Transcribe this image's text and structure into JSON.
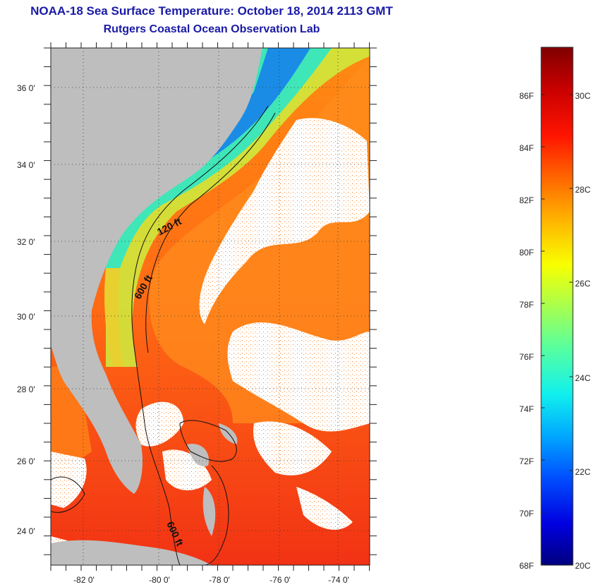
{
  "header": {
    "title": "NOAA-18 Sea Surface Temperature:  October 18, 2014 2113 GMT",
    "subtitle": "Rutgers Coastal Ocean Observation Lab"
  },
  "map": {
    "lat_labels": [
      "36 0'",
      "34 0'",
      "32 0'",
      "30 0'",
      "28 0'",
      "26 0'",
      "24 0'"
    ],
    "lon_labels": [
      "-82 0'",
      "-80 0'",
      "-78 0'",
      "-76 0'",
      "-74 0'"
    ],
    "contour_labels": [
      "120 ft",
      "600 ft",
      "600 ft"
    ],
    "colors": {
      "land": "#bebebe",
      "cloud": "#ffffff",
      "warm_water": "#f24a16",
      "gulf_stream": "#ff7a12",
      "shelf_water": "#4fe0b0",
      "cold_coastal": "#1a8ce6"
    }
  },
  "colorbar": {
    "fahrenheit_labels": [
      "86F",
      "84F",
      "82F",
      "80F",
      "78F",
      "76F",
      "74F",
      "72F",
      "70F",
      "68F"
    ],
    "celsius_labels": [
      "30C",
      "28C",
      "26C",
      "24C",
      "22C",
      "20C"
    ],
    "gradient": [
      "#00007f",
      "#0000e0",
      "#0050ff",
      "#00a8ff",
      "#10f0ee",
      "#58ff9e",
      "#a8ff4e",
      "#f8ff00",
      "#ffb000",
      "#ff6400",
      "#ff1400",
      "#c80000",
      "#800000"
    ]
  }
}
